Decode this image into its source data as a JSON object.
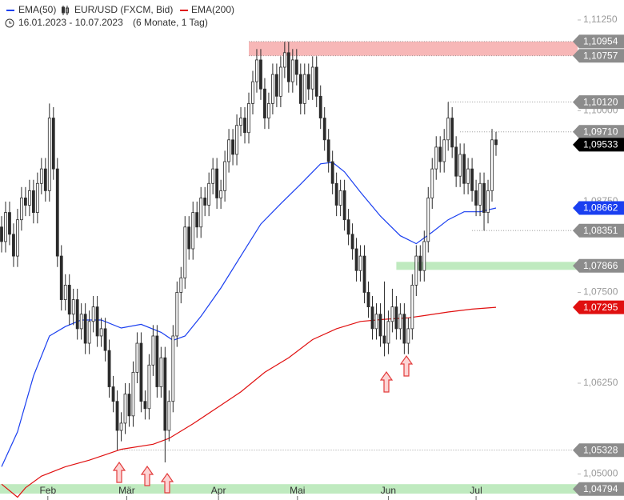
{
  "chart_data": {
    "type": "candlestick",
    "date_range": "16.01.2023 - 10.07.2023",
    "period": "(6 Monate, 1 Tag)",
    "ylim": [
      1.04642,
      1.11525
    ],
    "yticks": [
      {
        "value": 1.05,
        "label": "1,05000"
      },
      {
        "value": 1.0625,
        "label": "1,06250"
      },
      {
        "value": 1.075,
        "label": "1,07500"
      },
      {
        "value": 1.0875,
        "label": "1,08750"
      },
      {
        "value": 1.1,
        "label": "1,10000"
      },
      {
        "value": 1.1125,
        "label": "1,11250"
      }
    ],
    "xlim": [
      -0.4,
      124.4
    ],
    "xticks": [
      {
        "value": 11.6,
        "label": "Feb"
      },
      {
        "value": 31.4,
        "label": "Mär"
      },
      {
        "value": 54.4,
        "label": "Apr"
      },
      {
        "value": 74.2,
        "label": "Mai"
      },
      {
        "value": 97,
        "label": "Jun"
      },
      {
        "value": 119,
        "label": "Jul"
      }
    ],
    "series": [
      {
        "name": "EUR/USD (FXCM, Bid)",
        "up_color": "#ffffff",
        "down_color": "#2b2b2b",
        "ohlc": [
          [
            1.084,
            1.0855,
            1.0805,
            1.082
          ],
          [
            1.082,
            1.0875,
            1.0805,
            1.086
          ],
          [
            1.086,
            1.0875,
            1.0815,
            1.083
          ],
          [
            1.083,
            1.0845,
            1.0785,
            1.08
          ],
          [
            1.08,
            1.0865,
            1.0785,
            1.085
          ],
          [
            1.085,
            1.0895,
            1.0835,
            1.088
          ],
          [
            1.088,
            1.0895,
            1.0855,
            1.087
          ],
          [
            1.087,
            1.0905,
            1.0855,
            1.089
          ],
          [
            1.089,
            1.0905,
            1.0845,
            1.086
          ],
          [
            1.086,
            1.0915,
            1.0845,
            1.09
          ],
          [
            1.09,
            1.0935,
            1.0885,
            1.092
          ],
          [
            1.092,
            1.0935,
            1.0875,
            1.089
          ],
          [
            1.089,
            1.101,
            1.0875,
            1.099
          ],
          [
            1.099,
            1.1005,
            1.0905,
            1.092
          ],
          [
            1.092,
            1.0935,
            1.0785,
            1.08
          ],
          [
            1.08,
            1.0815,
            1.0725,
            1.074
          ],
          [
            1.074,
            1.0775,
            1.0725,
            1.076
          ],
          [
            1.076,
            1.0775,
            1.0705,
            1.072
          ],
          [
            1.072,
            1.0755,
            1.0705,
            1.074
          ],
          [
            1.074,
            1.0755,
            1.0685,
            1.07
          ],
          [
            1.07,
            1.0735,
            1.0685,
            1.072
          ],
          [
            1.072,
            1.0735,
            1.0665,
            1.068
          ],
          [
            1.068,
            1.0725,
            1.0665,
            1.071
          ],
          [
            1.071,
            1.0745,
            1.0695,
            1.073
          ],
          [
            1.073,
            1.0745,
            1.0675,
            1.069
          ],
          [
            1.069,
            1.0715,
            1.0675,
            1.07
          ],
          [
            1.07,
            1.0715,
            1.0655,
            1.067
          ],
          [
            1.067,
            1.0685,
            1.0605,
            1.062
          ],
          [
            1.062,
            1.0635,
            1.0585,
            1.06
          ],
          [
            1.06,
            1.0615,
            1.0533,
            1.056
          ],
          [
            1.056,
            1.0585,
            1.0545,
            1.057
          ],
          [
            1.057,
            1.0625,
            1.0555,
            1.061
          ],
          [
            1.061,
            1.0625,
            1.0565,
            1.058
          ],
          [
            1.058,
            1.0655,
            1.0565,
            1.064
          ],
          [
            1.064,
            1.0695,
            1.0625,
            1.068
          ],
          [
            1.068,
            1.0695,
            1.0585,
            1.06
          ],
          [
            1.06,
            1.0615,
            1.0575,
            1.059
          ],
          [
            1.059,
            1.0665,
            1.0575,
            1.065
          ],
          [
            1.065,
            1.0705,
            1.0635,
            1.069
          ],
          [
            1.069,
            1.0705,
            1.0605,
            1.062
          ],
          [
            1.062,
            1.0675,
            1.0605,
            1.066
          ],
          [
            1.066,
            1.0675,
            1.0516,
            1.056
          ],
          [
            1.056,
            1.0615,
            1.0545,
            1.06
          ],
          [
            1.06,
            1.0705,
            1.0585,
            1.069
          ],
          [
            1.069,
            1.0765,
            1.0675,
            1.075
          ],
          [
            1.075,
            1.0785,
            1.0735,
            1.077
          ],
          [
            1.077,
            1.0855,
            1.0755,
            1.084
          ],
          [
            1.084,
            1.0855,
            1.0795,
            1.081
          ],
          [
            1.081,
            1.0875,
            1.0795,
            1.086
          ],
          [
            1.086,
            1.0875,
            1.0825,
            1.084
          ],
          [
            1.084,
            1.0895,
            1.0825,
            1.088
          ],
          [
            1.088,
            1.0895,
            1.0855,
            1.087
          ],
          [
            1.087,
            1.0915,
            1.0855,
            1.09
          ],
          [
            1.09,
            1.0935,
            1.0885,
            1.092
          ],
          [
            1.092,
            1.0935,
            1.0865,
            1.088
          ],
          [
            1.088,
            1.0905,
            1.0865,
            1.089
          ],
          [
            1.089,
            1.0945,
            1.0875,
            1.093
          ],
          [
            1.093,
            1.0975,
            1.0915,
            1.096
          ],
          [
            1.096,
            1.0975,
            1.0925,
            1.094
          ],
          [
            1.094,
            1.0995,
            1.0925,
            1.098
          ],
          [
            1.098,
            1.1005,
            1.0965,
            1.099
          ],
          [
            1.099,
            1.1005,
            1.0955,
            1.097
          ],
          [
            1.097,
            1.1025,
            1.0955,
            1.101
          ],
          [
            1.101,
            1.1055,
            1.0995,
            1.104
          ],
          [
            1.104,
            1.1085,
            1.1025,
            1.107
          ],
          [
            1.107,
            1.1085,
            1.1015,
            1.103
          ],
          [
            1.103,
            1.1045,
            1.0975,
            1.099
          ],
          [
            1.099,
            1.1025,
            1.0975,
            1.101
          ],
          [
            1.101,
            1.1065,
            1.0995,
            1.105
          ],
          [
            1.105,
            1.1065,
            1.1005,
            1.102
          ],
          [
            1.102,
            1.1075,
            1.1005,
            1.106
          ],
          [
            1.106,
            1.1095,
            1.1045,
            1.108
          ],
          [
            1.108,
            1.1095,
            1.1025,
            1.104
          ],
          [
            1.104,
            1.1085,
            1.1025,
            1.107
          ],
          [
            1.107,
            1.1085,
            1.1035,
            1.105
          ],
          [
            1.105,
            1.1065,
            1.0995,
            1.101
          ],
          [
            1.101,
            1.1065,
            1.0995,
            1.105
          ],
          [
            1.105,
            1.1065,
            1.1015,
            1.103
          ],
          [
            1.103,
            1.1075,
            1.1015,
            1.106
          ],
          [
            1.106,
            1.1075,
            1.1005,
            1.102
          ],
          [
            1.102,
            1.1035,
            1.0975,
            1.099
          ],
          [
            1.099,
            1.1005,
            1.0945,
            1.096
          ],
          [
            1.096,
            1.0975,
            1.0915,
            1.093
          ],
          [
            1.093,
            1.0945,
            1.0885,
            1.09
          ],
          [
            1.09,
            1.0915,
            1.0855,
            1.087
          ],
          [
            1.087,
            1.0905,
            1.0855,
            1.089
          ],
          [
            1.089,
            1.0905,
            1.0835,
            1.085
          ],
          [
            1.085,
            1.0865,
            1.0815,
            1.083
          ],
          [
            1.083,
            1.0845,
            1.0795,
            1.081
          ],
          [
            1.081,
            1.0825,
            1.0765,
            1.078
          ],
          [
            1.078,
            1.0815,
            1.0765,
            1.08
          ],
          [
            1.08,
            1.0815,
            1.0735,
            1.075
          ],
          [
            1.075,
            1.0765,
            1.0715,
            1.073
          ],
          [
            1.073,
            1.0745,
            1.0685,
            1.07
          ],
          [
            1.07,
            1.0735,
            1.0685,
            1.072
          ],
          [
            1.072,
            1.0735,
            1.0675,
            1.069
          ],
          [
            1.069,
            1.0765,
            1.0662,
            1.068
          ],
          [
            1.068,
            1.0725,
            1.0665,
            1.071
          ],
          [
            1.071,
            1.0755,
            1.0695,
            1.073
          ],
          [
            1.073,
            1.0745,
            1.0685,
            1.07
          ],
          [
            1.07,
            1.0735,
            1.0685,
            1.072
          ],
          [
            1.072,
            1.0735,
            1.0665,
            1.068
          ],
          [
            1.068,
            1.0715,
            1.0665,
            1.07
          ],
          [
            1.07,
            1.0775,
            1.0685,
            1.076
          ],
          [
            1.076,
            1.0815,
            1.0745,
            1.08
          ],
          [
            1.08,
            1.0815,
            1.0765,
            1.078
          ],
          [
            1.078,
            1.0835,
            1.0765,
            1.082
          ],
          [
            1.082,
            1.0895,
            1.0805,
            1.088
          ],
          [
            1.088,
            1.0935,
            1.0865,
            1.092
          ],
          [
            1.092,
            1.0965,
            1.0905,
            1.095
          ],
          [
            1.095,
            1.0965,
            1.0915,
            1.093
          ],
          [
            1.093,
            1.0975,
            1.0915,
            1.096
          ],
          [
            1.096,
            1.1012,
            1.0945,
            1.099
          ],
          [
            1.099,
            1.1005,
            1.0935,
            1.095
          ],
          [
            1.095,
            1.0965,
            1.0895,
            1.091
          ],
          [
            1.091,
            1.0955,
            1.0895,
            1.094
          ],
          [
            1.094,
            1.0955,
            1.0885,
            1.09
          ],
          [
            1.09,
            1.0935,
            1.0885,
            1.092
          ],
          [
            1.092,
            1.0935,
            1.0875,
            1.089
          ],
          [
            1.089,
            1.0905,
            1.0855,
            1.087
          ],
          [
            1.087,
            1.0915,
            1.0855,
            1.09
          ],
          [
            1.09,
            1.0915,
            1.0835,
            1.086
          ],
          [
            1.086,
            1.0905,
            1.0845,
            1.089
          ],
          [
            1.089,
            1.0975,
            1.0875,
            1.096
          ],
          [
            1.096,
            1.0971,
            1.0938,
            1.09533
          ]
        ]
      },
      {
        "name": "EMA(50)",
        "color": "#1a3ff0",
        "x": [
          0,
          4,
          8,
          12,
          16,
          20,
          25,
          30,
          35,
          40,
          43,
          46,
          50,
          55,
          60,
          65,
          70,
          75,
          80,
          83,
          86,
          90,
          95,
          100,
          104,
          108,
          112,
          116,
          120,
          124
        ],
        "values": [
          1.051,
          1.0558,
          1.0635,
          1.069,
          1.0703,
          1.0712,
          1.0712,
          1.0701,
          1.0706,
          1.0695,
          1.0684,
          1.069,
          1.0717,
          1.0756,
          1.08,
          1.0844,
          1.0872,
          1.0899,
          1.0927,
          1.0929,
          1.0916,
          1.0888,
          1.0855,
          1.0828,
          1.0817,
          1.0833,
          1.085,
          1.0861,
          1.0861,
          1.08662
        ]
      },
      {
        "name": "EMA(200)",
        "color": "#e01010",
        "x": [
          0,
          4,
          6,
          10,
          16,
          22,
          30,
          38,
          42,
          48,
          54,
          60,
          66,
          72,
          78,
          84,
          90,
          96,
          102,
          106,
          112,
          118,
          124
        ],
        "values": [
          1.0486,
          1.0468,
          1.0481,
          1.0497,
          1.051,
          1.0519,
          1.0534,
          1.0541,
          1.0549,
          1.0569,
          1.0591,
          1.0613,
          1.064,
          1.066,
          1.0685,
          1.07,
          1.071,
          1.0713,
          1.0715,
          1.0718,
          1.0723,
          1.0727,
          1.07295
        ]
      }
    ],
    "zones": [
      {
        "top": 1.10954,
        "bottom": 1.10757,
        "from": 62,
        "color": "#f7b7b7"
      },
      {
        "top": 1.0792,
        "bottom": 1.0781,
        "from": 99,
        "color": "#bfeabf"
      },
      {
        "top": 1.0486,
        "bottom": 1.0473,
        "from": -0.4,
        "color": "#bfeabf"
      }
    ],
    "levels": [
      {
        "value": 1.10954,
        "label": "1,10954",
        "color": "#8c8c8c",
        "from": 62
      },
      {
        "value": 1.10757,
        "label": "1,10757",
        "color": "#8c8c8c",
        "from": 62
      },
      {
        "value": 1.1012,
        "label": "1,10120",
        "color": "#8c8c8c",
        "from": 112
      },
      {
        "value": 1.0971,
        "label": "1,09710",
        "color": "#8c8c8c",
        "from": 115
      },
      {
        "value": 1.09533,
        "label": "1,09533",
        "color": "#000000"
      },
      {
        "value": 1.08662,
        "label": "1,08662",
        "color": "#1a3ff0"
      },
      {
        "value": 1.08351,
        "label": "1,08351",
        "color": "#8c8c8c",
        "from": 118
      },
      {
        "value": 1.07866,
        "label": "1,07866",
        "color": "#8c8c8c"
      },
      {
        "value": 1.07295,
        "label": "1,07295",
        "color": "#e01010"
      },
      {
        "value": 1.05328,
        "label": "1,05328",
        "color": "#8c8c8c",
        "from": 29
      },
      {
        "value": 1.04794,
        "label": "1,04794",
        "color": "#8c8c8c"
      }
    ]
  }
}
